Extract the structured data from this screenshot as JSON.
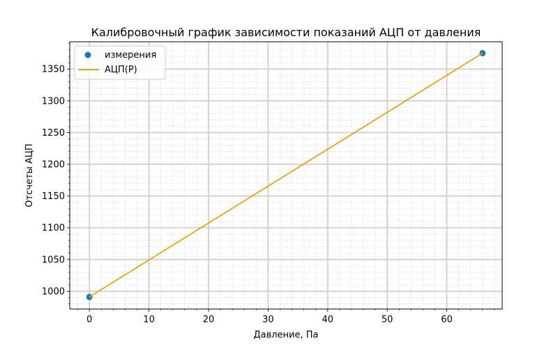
{
  "chart_data": {
    "type": "scatter",
    "title": "Калибровочный график зависимости показаний АЦП от давления",
    "xlabel": "Давление, Па",
    "ylabel": "Отсчеты АЦП",
    "xlim": [
      -3.3,
      69.3
    ],
    "ylim": [
      972,
      1393
    ],
    "xticks": [
      0,
      10,
      20,
      30,
      40,
      50,
      60
    ],
    "yticks": [
      1000,
      1050,
      1100,
      1150,
      1200,
      1250,
      1300,
      1350
    ],
    "grid": {
      "major": true,
      "minor": true
    },
    "legend_position": "top-left",
    "series": [
      {
        "name": "измерения",
        "kind": "scatter",
        "color": "#1f77b4",
        "points": [
          {
            "x": 0,
            "y": 991
          },
          {
            "x": 66,
            "y": 1375
          }
        ]
      },
      {
        "name": "АЦП(P)",
        "kind": "line",
        "color": "#e8a317",
        "points": [
          {
            "x": 0,
            "y": 991
          },
          {
            "x": 66,
            "y": 1375
          }
        ]
      }
    ]
  }
}
